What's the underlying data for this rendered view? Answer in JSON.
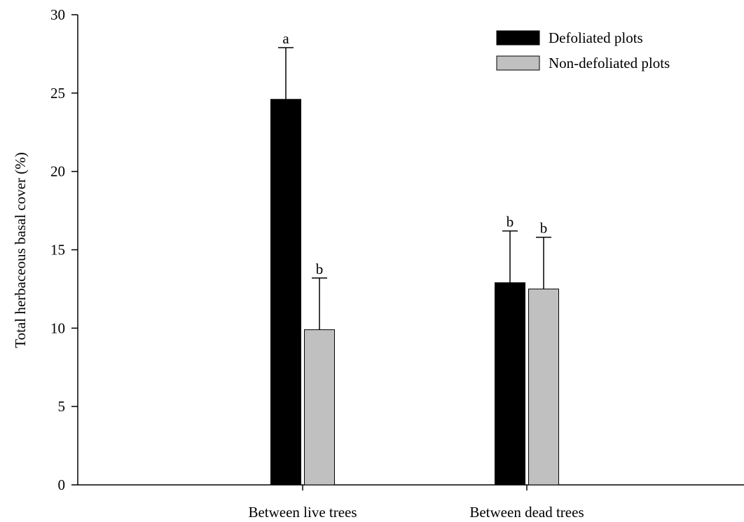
{
  "chart_data": {
    "type": "bar",
    "title": "",
    "xlabel": "",
    "ylabel": "Total herbaceous basal cover (%)",
    "ylim": [
      0,
      30
    ],
    "yticks": [
      0,
      5,
      10,
      15,
      20,
      25,
      30
    ],
    "grid": false,
    "legend_position": "top-right",
    "categories": [
      "Between live trees",
      "Between dead trees"
    ],
    "series": [
      {
        "name": "Defoliated plots",
        "color": "#000000",
        "values": [
          24.6,
          12.9
        ],
        "errors": [
          3.3,
          3.3
        ],
        "letters": [
          "a",
          "b"
        ]
      },
      {
        "name": "Non-defoliated plots",
        "color": "#c0c0c0",
        "values": [
          9.9,
          12.5
        ],
        "errors": [
          3.3,
          3.3
        ],
        "letters": [
          "b",
          "b"
        ]
      }
    ]
  }
}
